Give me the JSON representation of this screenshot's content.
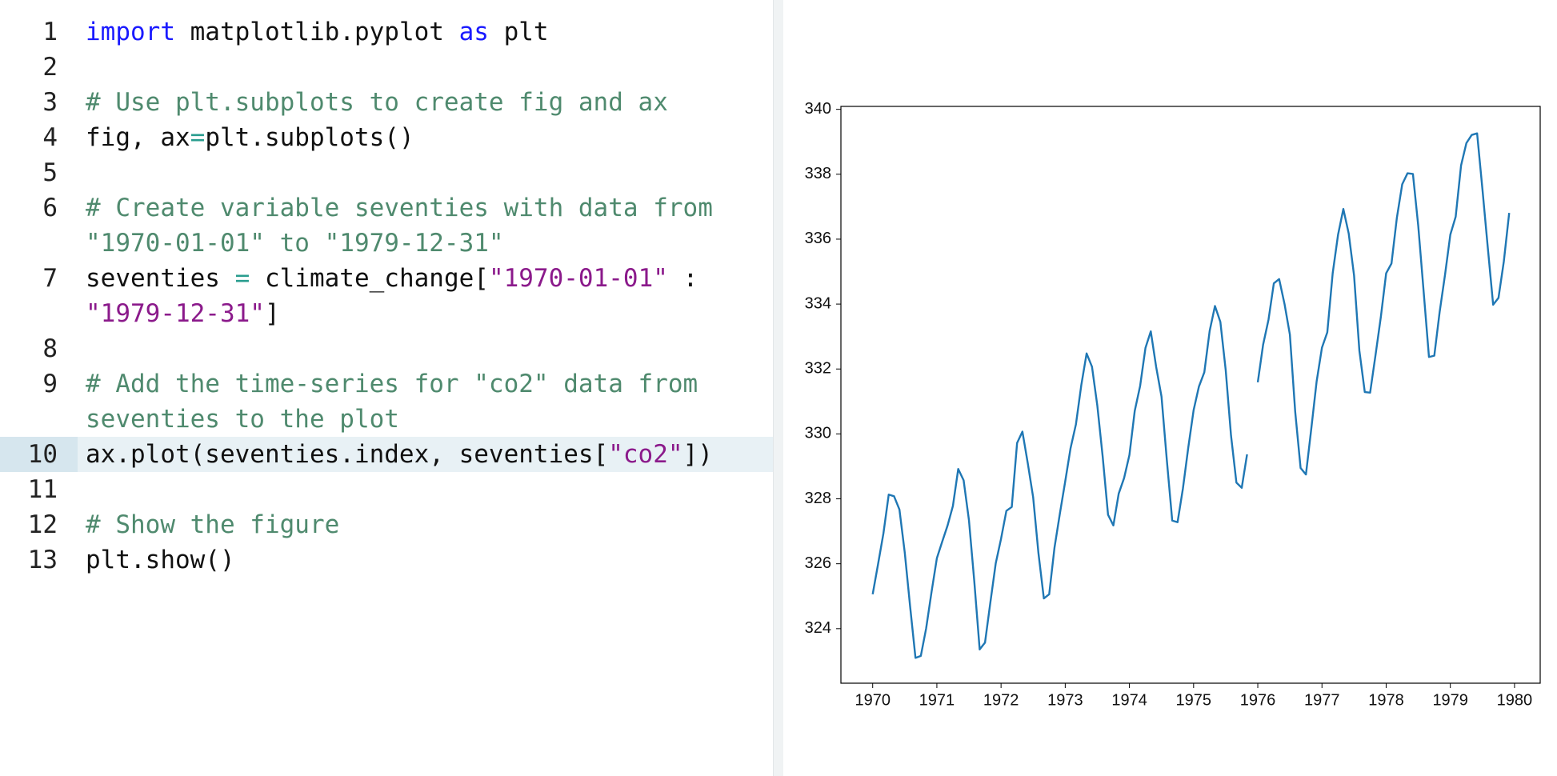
{
  "editor": {
    "lines": [
      {
        "number": 1,
        "rows": [
          [
            {
              "text": "import",
              "color": "#1a1aff"
            },
            {
              "text": " matplotlib.pyplot ",
              "color": "#111111"
            },
            {
              "text": "as",
              "color": "#1a1aff"
            },
            {
              "text": " plt",
              "color": "#111111"
            }
          ]
        ]
      },
      {
        "number": 2,
        "rows": []
      },
      {
        "number": 3,
        "rows": [
          [
            {
              "text": "# Use plt.subplots to create fig and ax",
              "color": "#4f8a6e"
            }
          ]
        ]
      },
      {
        "number": 4,
        "rows": [
          [
            {
              "text": "fig, ax",
              "color": "#111111"
            },
            {
              "text": "=",
              "color": "#2a9d8f"
            },
            {
              "text": "plt.subplots()",
              "color": "#111111"
            }
          ]
        ]
      },
      {
        "number": 5,
        "rows": []
      },
      {
        "number": 6,
        "rows": [
          [
            {
              "text": "# Create variable seventies with data from",
              "color": "#4f8a6e"
            }
          ],
          [
            {
              "text": "\"1970-01-01\" to \"1979-12-31\"",
              "color": "#4f8a6e"
            }
          ]
        ]
      },
      {
        "number": 7,
        "rows": [
          [
            {
              "text": "seventies ",
              "color": "#111111"
            },
            {
              "text": "=",
              "color": "#2a9d8f"
            },
            {
              "text": " climate_change[",
              "color": "#111111"
            },
            {
              "text": "\"1970-01-01\"",
              "color": "#8b1a8b"
            },
            {
              "text": " :",
              "color": "#111111"
            }
          ],
          [
            {
              "text": "\"1979-12-31\"",
              "color": "#8b1a8b"
            },
            {
              "text": "]",
              "color": "#111111"
            }
          ]
        ]
      },
      {
        "number": 8,
        "rows": []
      },
      {
        "number": 9,
        "rows": [
          [
            {
              "text": "# Add the time-series for \"co2\" data from",
              "color": "#4f8a6e"
            }
          ],
          [
            {
              "text": "seventies to the plot",
              "color": "#4f8a6e"
            }
          ]
        ]
      },
      {
        "number": 10,
        "rows": [
          [
            {
              "text": "ax.plot(seventies.index, seventies[",
              "color": "#111111"
            },
            {
              "text": "\"co2\"",
              "color": "#8b1a8b"
            },
            {
              "text": "])",
              "color": "#111111"
            }
          ]
        ],
        "active": true
      },
      {
        "number": 11,
        "rows": []
      },
      {
        "number": 12,
        "rows": [
          [
            {
              "text": "# Show the figure",
              "color": "#4f8a6e"
            }
          ]
        ]
      },
      {
        "number": 13,
        "rows": [
          [
            {
              "text": "plt.show()",
              "color": "#111111"
            }
          ]
        ]
      }
    ]
  },
  "chart_data": {
    "type": "line",
    "color": "#1f77b4",
    "x": [
      1970,
      1970.083,
      1970.167,
      1970.25,
      1970.333,
      1970.417,
      1970.5,
      1970.583,
      1970.667,
      1970.75,
      1970.833,
      1970.917,
      1971,
      1971.083,
      1971.167,
      1971.25,
      1971.333,
      1971.417,
      1971.5,
      1971.583,
      1971.667,
      1971.75,
      1971.833,
      1971.917,
      1972,
      1972.083,
      1972.167,
      1972.25,
      1972.333,
      1972.417,
      1972.5,
      1972.583,
      1972.667,
      1972.75,
      1972.833,
      1972.917,
      1973,
      1973.083,
      1973.167,
      1973.25,
      1973.333,
      1973.417,
      1973.5,
      1973.583,
      1973.667,
      1973.75,
      1973.833,
      1973.917,
      1974,
      1974.083,
      1974.167,
      1974.25,
      1974.333,
      1974.417,
      1974.5,
      1974.583,
      1974.667,
      1974.75,
      1974.833,
      1974.917,
      1975,
      1975.083,
      1975.167,
      1975.25,
      1975.333,
      1975.417,
      1975.5,
      1975.583,
      1975.667,
      1975.75,
      1975.833,
      1975.917,
      1976,
      1976.083,
      1976.167,
      1976.25,
      1976.333,
      1976.417,
      1976.5,
      1976.583,
      1976.667,
      1976.75,
      1976.833,
      1976.917,
      1977,
      1977.083,
      1977.167,
      1977.25,
      1977.333,
      1977.417,
      1977.5,
      1977.583,
      1977.667,
      1977.75,
      1977.833,
      1977.917,
      1978,
      1978.083,
      1978.167,
      1978.25,
      1978.333,
      1978.417,
      1978.5,
      1978.583,
      1978.667,
      1978.75,
      1978.833,
      1978.917,
      1979,
      1979.083,
      1979.167,
      1979.25,
      1979.333,
      1979.417,
      1979.5,
      1979.583,
      1979.667,
      1979.75,
      1979.833,
      1979.917
    ],
    "values": [
      325.06,
      325.98,
      326.93,
      328.13,
      328.08,
      327.67,
      326.34,
      324.69,
      323.1,
      323.16,
      324.01,
      325.13,
      326.17,
      326.68,
      327.18,
      327.78,
      328.92,
      328.57,
      327.34,
      325.46,
      323.36,
      323.57,
      324.8,
      326.01,
      326.77,
      327.63,
      327.75,
      329.72,
      330.07,
      329.09,
      328.05,
      326.32,
      324.93,
      325.06,
      326.5,
      327.55,
      328.54,
      329.56,
      330.3,
      331.5,
      332.48,
      332.07,
      330.87,
      329.31,
      327.51,
      327.18,
      328.16,
      328.64,
      329.35,
      330.71,
      331.48,
      332.65,
      333.16,
      332.06,
      331.15,
      329.19,
      327.33,
      327.28,
      328.31,
      329.58,
      330.73,
      331.46,
      331.9,
      333.17,
      333.94,
      333.45,
      331.97,
      329.95,
      328.5,
      328.34,
      329.37,
      null,
      331.59,
      332.75,
      333.52,
      334.64,
      334.77,
      334.0,
      333.06,
      330.68,
      328.95,
      328.75,
      330.15,
      331.62,
      332.66,
      333.13,
      334.95,
      336.13,
      336.93,
      336.17,
      334.88,
      332.56,
      331.29,
      331.27,
      332.41,
      333.6,
      334.95,
      335.25,
      336.66,
      337.69,
      338.03,
      338.01,
      336.41,
      334.41,
      332.37,
      332.41,
      333.75,
      334.9,
      336.14,
      336.69,
      338.27,
      338.96,
      339.21,
      339.26,
      337.54,
      335.75,
      333.98,
      334.19,
      335.31,
      336.81
    ],
    "xlim": [
      1969.505,
      1980.4
    ],
    "ylim": [
      322.32,
      340.09
    ],
    "xticks": [
      1970,
      1971,
      1972,
      1973,
      1974,
      1975,
      1976,
      1977,
      1978,
      1979,
      1980
    ],
    "yticks": [
      324,
      326,
      328,
      330,
      332,
      334,
      336,
      338,
      340
    ]
  }
}
